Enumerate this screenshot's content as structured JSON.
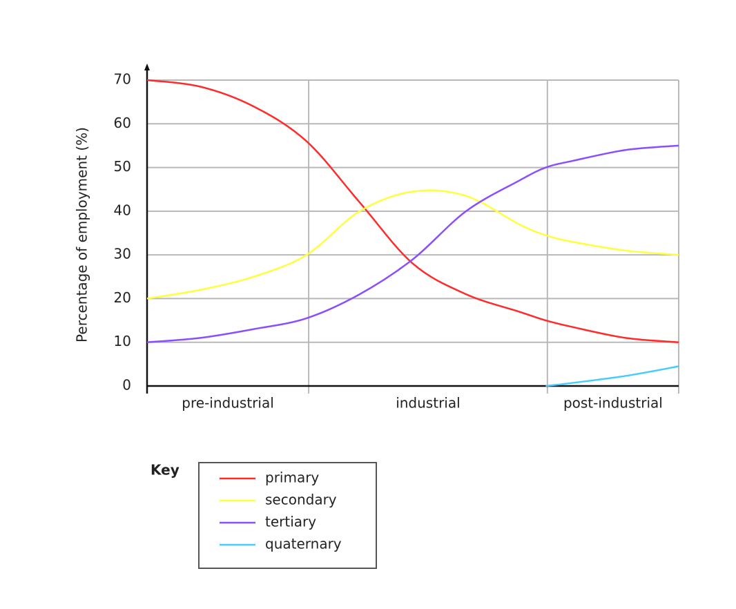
{
  "chart_data": {
    "type": "line",
    "ylabel": "Percentage of employment (%)",
    "x": [
      0,
      10,
      20,
      30,
      40,
      50,
      60,
      70,
      75,
      80,
      90,
      100
    ],
    "xlim": [
      0,
      100
    ],
    "x_bands": [
      {
        "label": "pre-industrial",
        "range": [
          0,
          30.4
        ]
      },
      {
        "label": "industrial",
        "range": [
          30.4,
          75.3
        ]
      },
      {
        "label": "post-industrial",
        "range": [
          75.3,
          100
        ]
      }
    ],
    "ylim": [
      0,
      70
    ],
    "yticks": [
      0,
      10,
      20,
      30,
      40,
      50,
      60,
      70
    ],
    "grid": true,
    "legend_title": "Key",
    "series": [
      {
        "name": "primary",
        "color": "#ff2a2a",
        "values": [
          70,
          68.5,
          64,
          56,
          42,
          28,
          21,
          17,
          15,
          13.5,
          11,
          10
        ]
      },
      {
        "name": "secondary",
        "color": "#ffff40",
        "values": [
          20,
          22,
          25,
          30,
          40,
          44.5,
          43.5,
          37,
          34.5,
          33,
          31,
          30
        ]
      },
      {
        "name": "tertiary",
        "color": "#8a4dff",
        "values": [
          10,
          11,
          13,
          15.5,
          21,
          29,
          40,
          47,
          50,
          51.5,
          54,
          55
        ]
      },
      {
        "name": "quaternary",
        "color": "#44ccff",
        "values": [
          null,
          null,
          null,
          null,
          null,
          null,
          null,
          null,
          0,
          0.7,
          2.3,
          4.5
        ]
      }
    ]
  }
}
